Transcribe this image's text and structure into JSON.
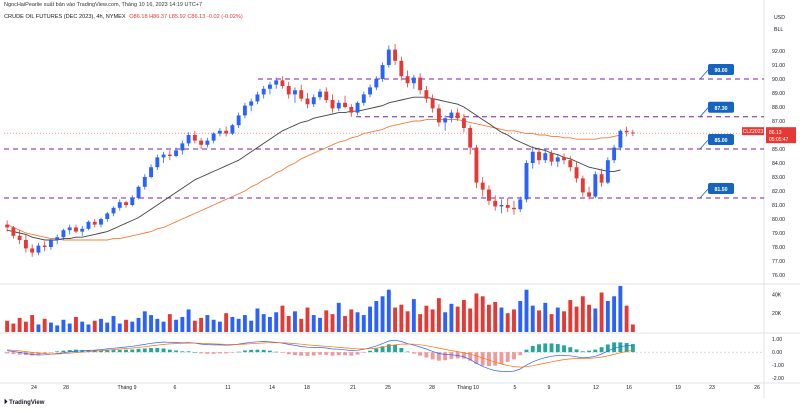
{
  "header": {
    "author_line": "NgocHaiPearlie xuất bản vào TradingView.com, Tháng 10 16, 2023 14:19 UTC+7",
    "symbol": "CRUDE OIL FUTURES (DEC 2023), 4h, NYMEX",
    "ohlc": "O86.18  H86.37  L85.92  C86.13  -0.02 (-0.02%)"
  },
  "axis": {
    "currency": "USD",
    "unit": "BLL",
    "volume_ticks": [
      "40K",
      "20K"
    ],
    "macd_ticks": [
      "1.00",
      "0.00",
      "-1.00",
      "-2.00"
    ]
  },
  "footer": {
    "brand": "TradingView"
  },
  "chart_data": {
    "type": "candlestick",
    "title": "CRUDE OIL FUTURES (DEC 2023), 4h, NYMEX",
    "price_ylim": [
      75.5,
      93.5
    ],
    "price_ticks": [
      76,
      77,
      78,
      79,
      80,
      81,
      82,
      83,
      84,
      85,
      86,
      87,
      88,
      89,
      90,
      91,
      92
    ],
    "x_labels": [
      "24",
      "28",
      "Tháng 9",
      "6",
      "11",
      "14",
      "18",
      "21",
      "25",
      "28",
      "Tháng 10",
      "5",
      "9",
      "12",
      "16",
      "19",
      "23",
      "26"
    ],
    "candles": [
      [
        79.6,
        79.9,
        79.1,
        79.4
      ],
      [
        79.4,
        79.5,
        78.6,
        78.8
      ],
      [
        78.8,
        79.2,
        78.2,
        78.5
      ],
      [
        78.5,
        78.9,
        77.6,
        77.9
      ],
      [
        77.9,
        78.2,
        77.3,
        77.6
      ],
      [
        77.6,
        78.3,
        77.4,
        78.1
      ],
      [
        78.1,
        78.4,
        77.7,
        78.0
      ],
      [
        78.0,
        78.6,
        77.8,
        78.5
      ],
      [
        78.5,
        78.9,
        78.2,
        78.7
      ],
      [
        78.7,
        79.3,
        78.5,
        79.2
      ],
      [
        79.2,
        79.6,
        78.9,
        79.4
      ],
      [
        79.4,
        79.6,
        79.0,
        79.1
      ],
      [
        79.1,
        79.5,
        78.8,
        79.3
      ],
      [
        79.3,
        79.9,
        79.2,
        79.8
      ],
      [
        79.8,
        80.0,
        79.4,
        79.6
      ],
      [
        79.6,
        80.1,
        79.4,
        80.0
      ],
      [
        80.0,
        80.5,
        79.8,
        80.4
      ],
      [
        80.4,
        80.9,
        80.2,
        80.8
      ],
      [
        80.8,
        81.4,
        80.6,
        81.2
      ],
      [
        81.2,
        81.3,
        80.8,
        81.0
      ],
      [
        81.0,
        81.7,
        80.9,
        81.5
      ],
      [
        81.5,
        82.4,
        81.4,
        82.3
      ],
      [
        82.3,
        83.2,
        82.1,
        83.0
      ],
      [
        83.0,
        83.9,
        82.9,
        83.7
      ],
      [
        83.7,
        84.6,
        83.5,
        84.4
      ],
      [
        84.4,
        84.8,
        84.0,
        84.6
      ],
      [
        84.6,
        84.9,
        84.2,
        84.5
      ],
      [
        84.5,
        85.1,
        84.4,
        84.9
      ],
      [
        84.9,
        85.6,
        84.6,
        85.4
      ],
      [
        85.4,
        86.2,
        85.2,
        86.0
      ],
      [
        86.0,
        86.3,
        85.4,
        85.6
      ],
      [
        85.6,
        85.8,
        85.0,
        85.3
      ],
      [
        85.3,
        85.8,
        85.1,
        85.6
      ],
      [
        85.6,
        86.2,
        85.4,
        86.1
      ],
      [
        86.1,
        86.5,
        85.9,
        86.3
      ],
      [
        86.3,
        86.6,
        85.9,
        86.1
      ],
      [
        86.1,
        86.8,
        86.0,
        86.7
      ],
      [
        86.7,
        87.6,
        86.5,
        87.4
      ],
      [
        87.4,
        88.3,
        87.2,
        88.1
      ],
      [
        88.1,
        88.6,
        87.7,
        88.4
      ],
      [
        88.4,
        89.1,
        88.2,
        88.9
      ],
      [
        88.9,
        89.5,
        88.6,
        89.3
      ],
      [
        89.3,
        89.8,
        88.9,
        89.6
      ],
      [
        89.6,
        90.1,
        89.3,
        89.9
      ],
      [
        89.9,
        90.2,
        89.3,
        89.5
      ],
      [
        89.5,
        89.8,
        88.6,
        88.9
      ],
      [
        88.9,
        89.4,
        88.3,
        89.2
      ],
      [
        89.2,
        89.6,
        88.4,
        88.6
      ],
      [
        88.6,
        89.0,
        87.9,
        88.2
      ],
      [
        88.2,
        88.9,
        88.0,
        88.7
      ],
      [
        88.7,
        89.3,
        88.5,
        89.1
      ],
      [
        89.1,
        89.4,
        88.3,
        88.5
      ],
      [
        88.5,
        88.9,
        87.6,
        87.9
      ],
      [
        87.9,
        88.5,
        87.7,
        88.3
      ],
      [
        88.3,
        88.8,
        87.9,
        88.0
      ],
      [
        88.0,
        88.2,
        87.3,
        87.6
      ],
      [
        87.6,
        88.4,
        87.4,
        88.3
      ],
      [
        88.3,
        89.1,
        88.1,
        88.9
      ],
      [
        88.9,
        89.6,
        88.7,
        89.4
      ],
      [
        89.4,
        90.2,
        89.2,
        90.0
      ],
      [
        90.0,
        91.2,
        89.8,
        91.0
      ],
      [
        91.0,
        92.4,
        90.8,
        92.1
      ],
      [
        92.1,
        92.5,
        91.0,
        91.3
      ],
      [
        91.3,
        91.6,
        89.9,
        90.2
      ],
      [
        90.2,
        90.6,
        89.4,
        89.7
      ],
      [
        89.7,
        90.3,
        89.3,
        90.1
      ],
      [
        90.1,
        90.4,
        88.9,
        89.2
      ],
      [
        89.2,
        89.5,
        88.3,
        88.6
      ],
      [
        88.6,
        88.9,
        87.6,
        87.9
      ],
      [
        87.9,
        88.2,
        86.6,
        86.9
      ],
      [
        86.9,
        87.4,
        86.3,
        87.2
      ],
      [
        87.2,
        87.8,
        86.9,
        87.6
      ],
      [
        87.6,
        87.9,
        87.0,
        87.2
      ],
      [
        87.2,
        87.5,
        86.2,
        86.5
      ],
      [
        86.5,
        86.7,
        84.6,
        85.1
      ],
      [
        85.1,
        85.3,
        82.2,
        82.6
      ],
      [
        82.6,
        83.0,
        81.6,
        82.1
      ],
      [
        82.1,
        82.4,
        81.0,
        81.3
      ],
      [
        81.3,
        81.7,
        80.6,
        80.9
      ],
      [
        80.9,
        81.4,
        80.4,
        81.0
      ],
      [
        81.0,
        81.5,
        80.5,
        80.8
      ],
      [
        80.8,
        81.3,
        80.3,
        80.7
      ],
      [
        80.7,
        81.6,
        80.5,
        81.4
      ],
      [
        81.4,
        84.2,
        81.2,
        84.0
      ],
      [
        84.0,
        85.2,
        83.6,
        84.8
      ],
      [
        84.8,
        85.1,
        83.9,
        84.2
      ],
      [
        84.2,
        85.0,
        84.0,
        84.7
      ],
      [
        84.7,
        84.9,
        83.8,
        84.1
      ],
      [
        84.1,
        84.6,
        83.7,
        84.4
      ],
      [
        84.4,
        84.7,
        83.9,
        84.2
      ],
      [
        84.2,
        84.5,
        83.4,
        83.7
      ],
      [
        83.7,
        84.1,
        82.6,
        82.9
      ],
      [
        82.9,
        83.1,
        81.6,
        81.9
      ],
      [
        81.9,
        82.3,
        81.4,
        81.6
      ],
      [
        81.6,
        83.4,
        81.5,
        83.2
      ],
      [
        83.2,
        83.6,
        82.3,
        82.6
      ],
      [
        82.6,
        84.4,
        82.5,
        84.2
      ],
      [
        84.2,
        85.3,
        84.0,
        85.1
      ],
      [
        85.1,
        86.4,
        84.9,
        86.3
      ],
      [
        86.3,
        86.6,
        85.9,
        86.2
      ],
      [
        86.18,
        86.37,
        85.92,
        86.13
      ]
    ],
    "ema_fast": [
      79.2,
      79.1,
      79.0,
      78.9,
      78.7,
      78.6,
      78.5,
      78.5,
      78.5,
      78.6,
      78.6,
      78.7,
      78.7,
      78.8,
      78.9,
      79.0,
      79.1,
      79.3,
      79.5,
      79.7,
      79.9,
      80.1,
      80.4,
      80.7,
      81.0,
      81.3,
      81.6,
      81.9,
      82.2,
      82.5,
      82.8,
      83.0,
      83.2,
      83.4,
      83.6,
      83.8,
      84.0,
      84.2,
      84.5,
      84.8,
      85.1,
      85.4,
      85.7,
      86.0,
      86.3,
      86.5,
      86.7,
      86.9,
      87.0,
      87.2,
      87.3,
      87.4,
      87.5,
      87.6,
      87.6,
      87.7,
      87.7,
      87.8,
      87.9,
      88.0,
      88.1,
      88.3,
      88.4,
      88.5,
      88.6,
      88.7,
      88.7,
      88.7,
      88.6,
      88.5,
      88.4,
      88.3,
      88.2,
      88.0,
      87.7,
      87.4,
      87.1,
      86.8,
      86.5,
      86.2,
      86.0,
      85.7,
      85.5,
      85.3,
      85.1,
      85.0,
      84.9,
      84.7,
      84.6,
      84.4,
      84.3,
      84.1,
      83.9,
      83.7,
      83.6,
      83.5,
      83.4,
      83.4,
      83.5
    ],
    "ema_slow": [
      79.6,
      79.4,
      79.2,
      79.0,
      78.9,
      78.8,
      78.7,
      78.6,
      78.6,
      78.5,
      78.5,
      78.5,
      78.5,
      78.5,
      78.5,
      78.5,
      78.5,
      78.6,
      78.6,
      78.7,
      78.8,
      78.9,
      79.0,
      79.1,
      79.3,
      79.4,
      79.6,
      79.8,
      80.0,
      80.2,
      80.4,
      80.6,
      80.8,
      81.0,
      81.2,
      81.4,
      81.6,
      81.8,
      82.0,
      82.3,
      82.5,
      82.8,
      83.0,
      83.3,
      83.5,
      83.8,
      84.0,
      84.3,
      84.5,
      84.7,
      84.9,
      85.1,
      85.3,
      85.5,
      85.6,
      85.8,
      85.9,
      86.1,
      86.2,
      86.3,
      86.4,
      86.6,
      86.7,
      86.8,
      86.9,
      87.0,
      87.0,
      87.1,
      87.1,
      87.1,
      87.1,
      87.1,
      87.1,
      87.0,
      86.9,
      86.8,
      86.7,
      86.6,
      86.5,
      86.4,
      86.3,
      86.3,
      86.2,
      86.1,
      86.1,
      86.0,
      86.0,
      85.9,
      85.9,
      85.8,
      85.8,
      85.7,
      85.7,
      85.7,
      85.7,
      85.8,
      85.8,
      85.9,
      86.0
    ],
    "levels": [
      {
        "value": 90.0,
        "label": "90.00",
        "color": "#7b1fa2"
      },
      {
        "value": 87.3,
        "label": "87.30",
        "color": "#7b1fa2"
      },
      {
        "value": 85.0,
        "label": "85.00",
        "color": "#7b1fa2"
      },
      {
        "value": 81.5,
        "label": "81.50",
        "color": "#7b1fa2"
      }
    ],
    "last_price": {
      "symbol": "CLZ2023",
      "price": "86.13",
      "countdown": "05:05:47"
    },
    "volume": [
      12,
      9,
      15,
      11,
      18,
      8,
      14,
      10,
      7,
      13,
      9,
      16,
      11,
      8,
      12,
      14,
      10,
      17,
      9,
      13,
      11,
      15,
      22,
      18,
      14,
      11,
      19,
      13,
      16,
      24,
      12,
      15,
      18,
      13,
      11,
      20,
      16,
      14,
      18,
      12,
      25,
      19,
      16,
      21,
      28,
      17,
      22,
      14,
      26,
      18,
      15,
      23,
      19,
      31,
      17,
      24,
      21,
      18,
      27,
      33,
      38,
      45,
      26,
      29,
      22,
      35,
      19,
      28,
      24,
      36,
      21,
      30,
      27,
      34,
      25,
      41,
      38,
      29,
      32,
      26,
      20,
      24,
      33,
      45,
      28,
      23,
      31,
      19,
      26,
      22,
      34,
      27,
      38,
      29,
      25,
      42,
      33,
      38,
      49,
      28,
      8
    ],
    "volume_colors": "cycle:blue,red",
    "macd": [
      0.12,
      0.05,
      -0.02,
      -0.1,
      -0.18,
      -0.22,
      -0.2,
      -0.15,
      -0.1,
      -0.05,
      0.02,
      0.08,
      0.1,
      0.14,
      0.16,
      0.2,
      0.25,
      0.3,
      0.35,
      0.4,
      0.45,
      0.52,
      0.6,
      0.68,
      0.74,
      0.78,
      0.76,
      0.74,
      0.72,
      0.74,
      0.7,
      0.62,
      0.58,
      0.56,
      0.56,
      0.54,
      0.56,
      0.62,
      0.7,
      0.76,
      0.8,
      0.82,
      0.8,
      0.76,
      0.7,
      0.6,
      0.52,
      0.44,
      0.38,
      0.36,
      0.36,
      0.32,
      0.24,
      0.22,
      0.18,
      0.12,
      0.14,
      0.22,
      0.34,
      0.48,
      0.66,
      0.86,
      0.92,
      0.82,
      0.66,
      0.54,
      0.4,
      0.24,
      0.06,
      -0.1,
      -0.18,
      -0.2,
      -0.26,
      -0.36,
      -0.56,
      -0.86,
      -1.1,
      -1.28,
      -1.42,
      -1.48,
      -1.5,
      -1.46,
      -1.3,
      -1.0,
      -0.74,
      -0.56,
      -0.42,
      -0.32,
      -0.26,
      -0.24,
      -0.28,
      -0.36,
      -0.44,
      -0.4,
      -0.32,
      -0.14,
      0.08,
      0.3,
      0.42,
      0.5,
      0.54
    ],
    "macd_signal": [
      0.18,
      0.14,
      0.1,
      0.04,
      -0.02,
      -0.08,
      -0.12,
      -0.14,
      -0.14,
      -0.12,
      -0.08,
      -0.04,
      0.0,
      0.04,
      0.08,
      0.12,
      0.16,
      0.2,
      0.24,
      0.28,
      0.32,
      0.36,
      0.42,
      0.48,
      0.54,
      0.6,
      0.64,
      0.66,
      0.68,
      0.7,
      0.7,
      0.68,
      0.66,
      0.64,
      0.62,
      0.6,
      0.59,
      0.6,
      0.62,
      0.65,
      0.68,
      0.71,
      0.73,
      0.74,
      0.73,
      0.7,
      0.66,
      0.61,
      0.56,
      0.52,
      0.48,
      0.45,
      0.41,
      0.37,
      0.33,
      0.29,
      0.26,
      0.25,
      0.27,
      0.31,
      0.38,
      0.48,
      0.57,
      0.62,
      0.63,
      0.61,
      0.57,
      0.5,
      0.41,
      0.31,
      0.21,
      0.12,
      0.04,
      -0.05,
      -0.15,
      -0.29,
      -0.45,
      -0.61,
      -0.77,
      -0.91,
      -1.03,
      -1.11,
      -1.15,
      -1.12,
      -1.04,
      -0.94,
      -0.84,
      -0.74,
      -0.65,
      -0.57,
      -0.52,
      -0.49,
      -0.48,
      -0.47,
      -0.44,
      -0.38,
      -0.29,
      -0.17,
      -0.05,
      0.06,
      0.15
    ]
  }
}
